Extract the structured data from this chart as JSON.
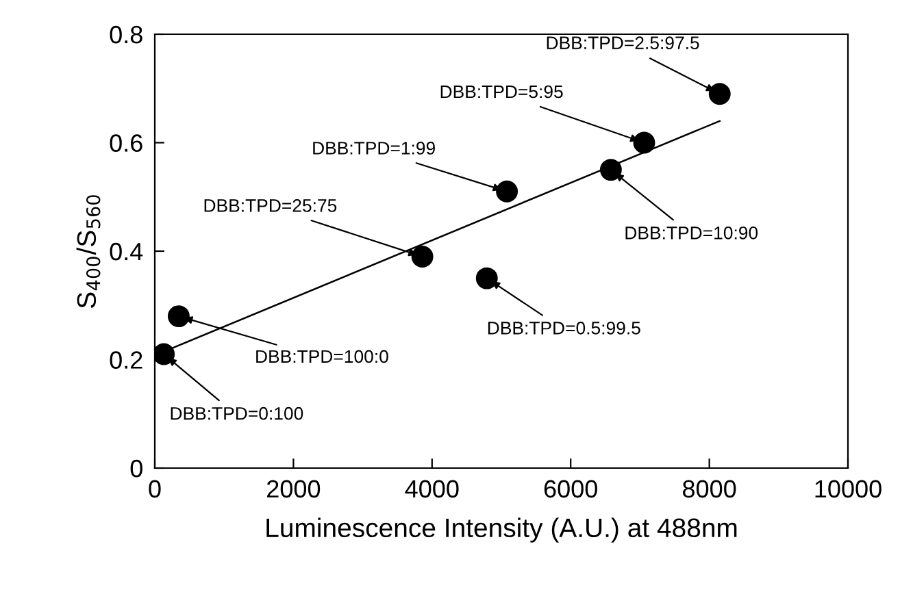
{
  "chart_data": {
    "type": "scatter",
    "xlabel": "Luminescence Intensity (A.U.) at 488nm",
    "ylabel": "S$_{400}$/S$_{560}$",
    "x": [
      130,
      345,
      3860,
      5080,
      4790,
      6580,
      7060,
      8150
    ],
    "series": [
      {
        "color": "#000000",
        "marker": "circle",
        "values": [
          0.21,
          0.28,
          0.39,
          0.51,
          0.35,
          0.55,
          0.6,
          0.69
        ]
      },
      {
        "type": "line",
        "color": "#000000",
        "x": [
          230,
          8150
        ],
        "values": [
          0.22,
          0.64
        ]
      }
    ],
    "annotations": [
      {
        "text": "DBB:TPD=0:100",
        "x": 130,
        "y": 0.21
      },
      {
        "text": "DBB:TPD=100:0",
        "x": 345,
        "y": 0.28
      },
      {
        "text": "DBB:TPD=25:75",
        "x": 3860,
        "y": 0.39
      },
      {
        "text": "DBB:TPD=1:99",
        "x": 5080,
        "y": 0.51
      },
      {
        "text": "DBB:TPD=0.5:99.5",
        "x": 4790,
        "y": 0.35
      },
      {
        "text": "DBB:TPD=10:90",
        "x": 6580,
        "y": 0.55
      },
      {
        "text": "DBB:TPD=5:95",
        "x": 7060,
        "y": 0.6
      },
      {
        "text": "DBB:TPD=2.5:97.5",
        "x": 8150,
        "y": 0.69
      }
    ],
    "xlim": [
      0,
      10000
    ],
    "xticks": [
      0,
      2000,
      4000,
      6000,
      8000,
      10000
    ],
    "ylim": [
      0,
      0.8
    ],
    "yticks": [
      0,
      0.2,
      0.4,
      0.6,
      0.8
    ],
    "grid": false,
    "legend": false
  }
}
